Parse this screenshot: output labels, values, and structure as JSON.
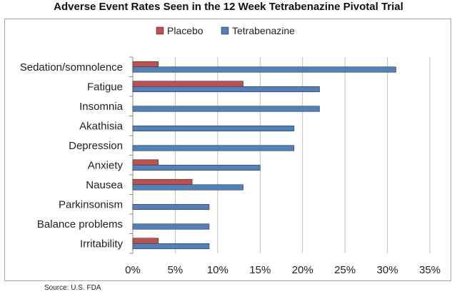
{
  "chart_data": {
    "type": "bar",
    "orientation": "horizontal",
    "title": "Adverse Event Rates Seen in the 12 Week Tetrabenazine Pivotal Trial",
    "categories": [
      "Sedation/somnolence",
      "Fatigue",
      "Insomnia",
      "Akathisia",
      "Depression",
      "Anxiety",
      "Nausea",
      "Parkinsonism",
      "Balance problems",
      "Irritability"
    ],
    "series": [
      {
        "name": "Placebo",
        "color": "#c0504d",
        "values": [
          3,
          13,
          0,
          0,
          0,
          3,
          7,
          0,
          0,
          3
        ]
      },
      {
        "name": "Tetrabenazine",
        "color": "#4f81bd",
        "values": [
          31,
          22,
          22,
          19,
          19,
          15,
          13,
          9,
          9,
          9
        ]
      }
    ],
    "xlim": [
      0,
      35
    ],
    "xticks": [
      "0%",
      "5%",
      "10%",
      "15%",
      "20%",
      "25%",
      "30%",
      "35%"
    ],
    "grid": true,
    "legend_position": "top-center"
  },
  "source": "Source: U.S. FDA"
}
